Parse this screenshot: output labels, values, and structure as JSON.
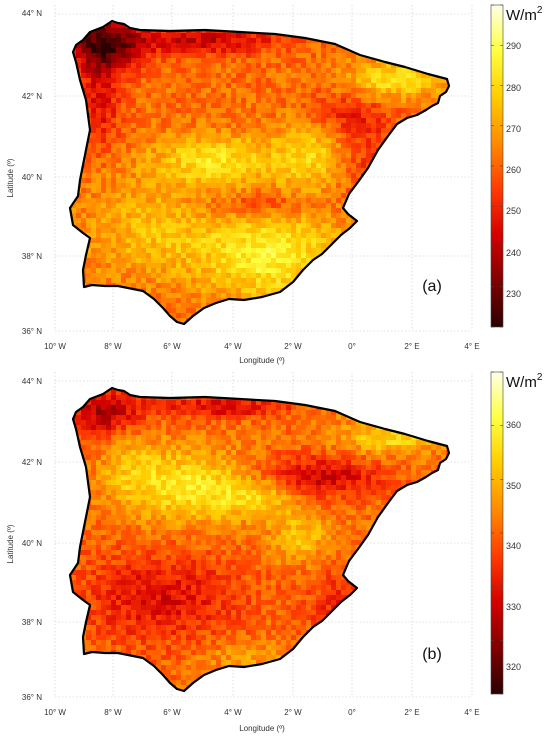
{
  "panels": [
    {
      "id": "a",
      "label": "(a)",
      "xlabel": "Longitude (º)",
      "ylabel": "Latitude (º)",
      "xticks": [
        "10° W",
        "8° W",
        "6° W",
        "4° W",
        "2° W",
        "0°",
        "2° E",
        "4° E"
      ],
      "yticks": [
        "44° N",
        "42° N",
        "40° N",
        "38° N",
        "36° N"
      ],
      "colorbar": {
        "unit_base": "W/m",
        "unit_exp": "2",
        "ticks": [
          "290",
          "280",
          "270",
          "260",
          "250",
          "240",
          "230"
        ],
        "range": [
          221,
          296
        ]
      }
    },
    {
      "id": "b",
      "label": "(b)",
      "xlabel": "Longitude (º)",
      "ylabel": "Latitude (º)",
      "xticks": [
        "10° W",
        "8° W",
        "6° W",
        "4° W",
        "2° W",
        "0°",
        "2° E",
        "4° E"
      ],
      "yticks": [
        "44° N",
        "42° N",
        "40° N",
        "38° N",
        "36° N"
      ],
      "colorbar": {
        "unit_base": "W/m",
        "unit_exp": "2",
        "ticks": [
          "360",
          "350",
          "340",
          "330",
          "320"
        ],
        "range": [
          314,
          367
        ]
      }
    }
  ],
  "colormap": [
    "#2a0000",
    "#800000",
    "#d40000",
    "#ff3b00",
    "#ff8a00",
    "#ffcc00",
    "#ffff40",
    "#ffffe6"
  ],
  "frame_color": "#000000"
}
